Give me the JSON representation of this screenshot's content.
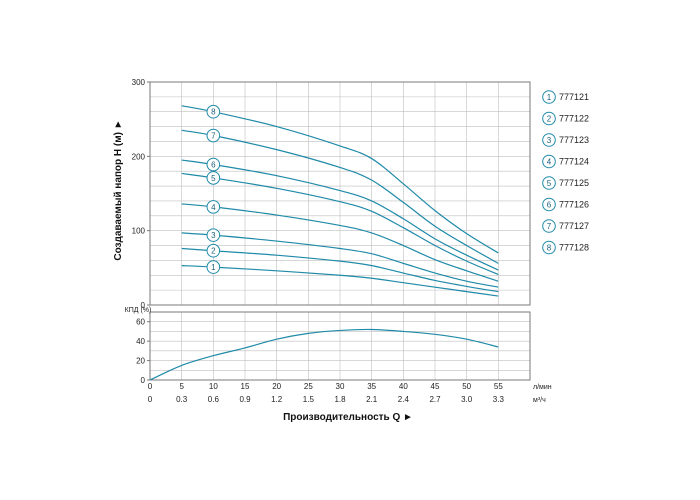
{
  "chart_data": {
    "type": "line",
    "colors": {
      "curve": "#1f8aa8",
      "grid": "#bfbfbf",
      "frame": "#7a7a7a",
      "marker": "#1f8aa8"
    },
    "x_axis": {
      "ticks_q": [
        0,
        5,
        10,
        15,
        20,
        25,
        30,
        35,
        40,
        45,
        50,
        55
      ],
      "ticks_q_labels": [
        "0",
        "5",
        "10",
        "15",
        "20",
        "25",
        "30",
        "35",
        "40",
        "45",
        "50",
        "55"
      ],
      "unit_q": "л/мин",
      "ticks_m3": [
        "0",
        "0.3",
        "0.6",
        "0.9",
        "1.2",
        "1.5",
        "1.8",
        "2.1",
        "2.4",
        "2.7",
        "3.0",
        "3.3"
      ],
      "unit_m3": "м³/ч",
      "label": "Производительность Q",
      "arrow": "►",
      "lim": [
        0,
        60
      ]
    },
    "head_axis": {
      "label": "Создаваемый напор H (м)",
      "arrow": "►",
      "ticks": [
        0,
        100,
        200,
        300
      ],
      "ticks_labels": [
        "0",
        "100",
        "200",
        "300"
      ],
      "lim": [
        0,
        300
      ]
    },
    "eff_axis": {
      "label": "КПД (%)",
      "ticks": [
        0,
        20,
        40,
        60
      ],
      "ticks_labels": [
        "0",
        "20",
        "40",
        "60"
      ],
      "lim": [
        0,
        70
      ]
    },
    "head_series": [
      {
        "id": "1",
        "name": "777121",
        "x": [
          5,
          10,
          20,
          30,
          35,
          40,
          45,
          50,
          55
        ],
        "y": [
          53,
          51,
          46,
          40,
          36,
          30,
          24,
          18,
          12
        ]
      },
      {
        "id": "2",
        "name": "777122",
        "x": [
          5,
          10,
          20,
          30,
          35,
          40,
          45,
          50,
          55
        ],
        "y": [
          76,
          73,
          67,
          59,
          53,
          43,
          33,
          25,
          18
        ]
      },
      {
        "id": "3",
        "name": "777123",
        "x": [
          5,
          10,
          20,
          30,
          35,
          40,
          45,
          50,
          55
        ],
        "y": [
          97,
          94,
          86,
          76,
          69,
          56,
          43,
          32,
          24
        ]
      },
      {
        "id": "4",
        "name": "777124",
        "x": [
          5,
          10,
          20,
          30,
          35,
          40,
          45,
          50,
          55
        ],
        "y": [
          136,
          132,
          121,
          107,
          97,
          80,
          61,
          46,
          32
        ]
      },
      {
        "id": "5",
        "name": "777125",
        "x": [
          5,
          10,
          20,
          30,
          35,
          40,
          45,
          50,
          55
        ],
        "y": [
          177,
          171,
          157,
          139,
          126,
          104,
          80,
          59,
          41
        ]
      },
      {
        "id": "6",
        "name": "777126",
        "x": [
          5,
          10,
          20,
          30,
          35,
          40,
          45,
          50,
          55
        ],
        "y": [
          195,
          189,
          174,
          154,
          140,
          116,
          89,
          67,
          47
        ]
      },
      {
        "id": "7",
        "name": "777127",
        "x": [
          5,
          10,
          20,
          30,
          35,
          40,
          45,
          50,
          55
        ],
        "y": [
          235,
          228,
          209,
          185,
          168,
          138,
          106,
          80,
          56
        ]
      },
      {
        "id": "8",
        "name": "777128",
        "x": [
          5,
          10,
          20,
          30,
          35,
          40,
          45,
          50,
          55
        ],
        "y": [
          268,
          260,
          240,
          214,
          197,
          163,
          127,
          96,
          70
        ]
      }
    ],
    "efficiency_series": {
      "x": [
        0,
        5,
        10,
        15,
        20,
        25,
        30,
        35,
        40,
        45,
        50,
        55
      ],
      "y": [
        0,
        15,
        25,
        33,
        42,
        48,
        51,
        52,
        50,
        47,
        42,
        34
      ]
    },
    "legend": [
      {
        "id": "1",
        "name": "777121"
      },
      {
        "id": "2",
        "name": "777122"
      },
      {
        "id": "3",
        "name": "777123"
      },
      {
        "id": "4",
        "name": "777124"
      },
      {
        "id": "5",
        "name": "777125"
      },
      {
        "id": "6",
        "name": "777126"
      },
      {
        "id": "7",
        "name": "777127"
      },
      {
        "id": "8",
        "name": "777128"
      }
    ],
    "grid": true,
    "legend_position": "right"
  }
}
